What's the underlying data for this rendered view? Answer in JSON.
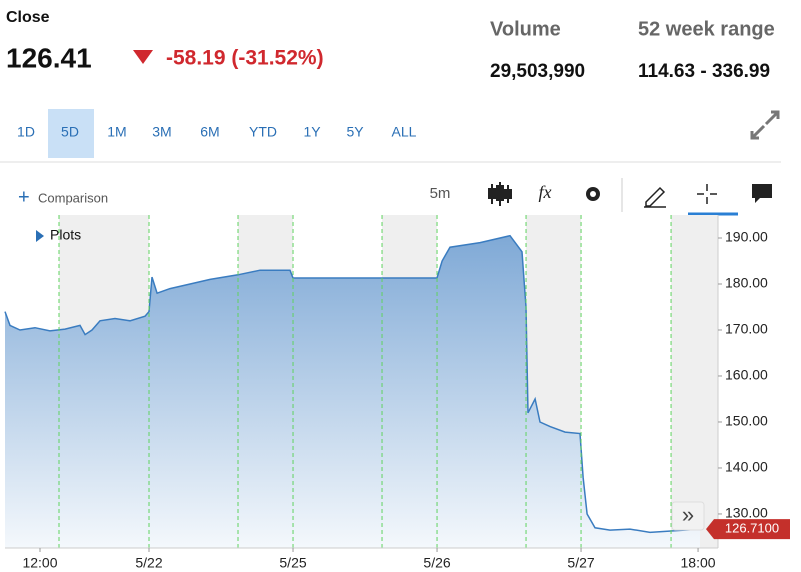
{
  "header": {
    "close_label": "Close",
    "price": "126.41",
    "change": "-58.19 (-31.52%)",
    "volume_label": "Volume",
    "volume": "29,503,990",
    "range_label": "52 week range",
    "range": "114.63 - 336.99"
  },
  "ranges": [
    "1D",
    "5D",
    "1M",
    "3M",
    "6M",
    "YTD",
    "1Y",
    "5Y",
    "ALL"
  ],
  "selected_range": "5D",
  "toolbar": {
    "comparison": "Comparison",
    "interval": "5m",
    "fx_icon": "fx",
    "plots": "Plots",
    "scroll": "»"
  },
  "chart_data": {
    "type": "area",
    "color": "#3a7cc0",
    "x": [
      -1.0,
      -0.965,
      -0.896,
      -0.792,
      -0.688,
      -0.583,
      -0.479,
      -0.444,
      -0.396,
      -0.34,
      -0.236,
      -0.132,
      -0.028,
      0,
      0.021,
      0.056,
      0.146,
      0.285,
      0.424,
      0.618,
      0.771,
      0.979,
      1.0,
      2.0,
      2.035,
      2.09,
      2.299,
      2.507,
      2.59,
      2.618,
      2.632,
      2.681,
      2.715,
      2.785,
      2.889,
      2.993,
      3.014,
      3.042,
      3.097,
      3.201,
      3.34,
      3.479,
      3.625,
      3.826
    ],
    "values": [
      174,
      171,
      170,
      170.5,
      169.8,
      170.2,
      171,
      169,
      170,
      172,
      172.5,
      172,
      173,
      174,
      181.5,
      178,
      179,
      180,
      181,
      182,
      183,
      183,
      181.3,
      181.3,
      185,
      188,
      189,
      190.5,
      187,
      175,
      152,
      155,
      150,
      149,
      147.8,
      147.5,
      138,
      130,
      127,
      126.5,
      126.7,
      126,
      126.3,
      126.7
    ],
    "last_value": {
      "value": 126.71,
      "label": "126.7100"
    },
    "shaded": [
      [
        -0.625,
        0
      ],
      [
        0.618,
        1
      ],
      [
        1.618,
        2
      ],
      [
        2.618,
        3
      ],
      [
        3.625,
        3.951
      ]
    ],
    "xlim": [
      -1,
      3.951
    ],
    "ylim": [
      122.6,
      195
    ],
    "xticks": [
      {
        "value": -0.757,
        "label": "12:00"
      },
      {
        "value": 0,
        "label": "5/22"
      },
      {
        "value": 1,
        "label": "5/25"
      },
      {
        "value": 2,
        "label": "5/26"
      },
      {
        "value": 3,
        "label": "5/27"
      },
      {
        "value": 3.8125,
        "label": "18:00"
      }
    ],
    "yticks": [
      {
        "value": 130,
        "label": "130.00"
      },
      {
        "value": 140,
        "label": "140.00"
      },
      {
        "value": 150,
        "label": "150.00"
      },
      {
        "value": 160,
        "label": "160.00"
      },
      {
        "value": 170,
        "label": "170.00"
      },
      {
        "value": 180,
        "label": "180.00"
      },
      {
        "value": 190,
        "label": "190.00"
      }
    ]
  }
}
